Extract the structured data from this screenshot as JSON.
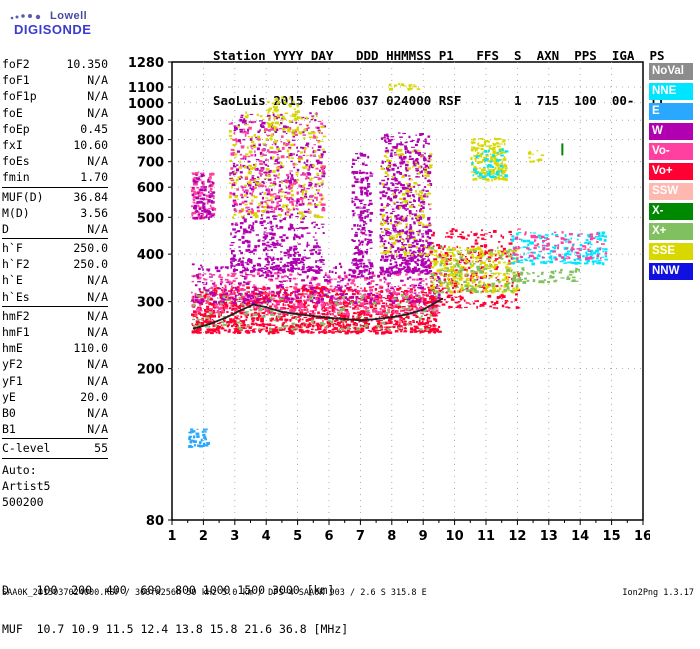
{
  "logo": {
    "lowell": "Lowell",
    "digisonde": "DIGISONDE"
  },
  "header": {
    "line1": "Station YYYY DAY   DDD HHMMSS P1   FFS  S  AXN  PPS  IGA  PS",
    "line2": "SaoLuis 2015 Feb06 037 024000 RSF       1  715  100  00-  11"
  },
  "params": {
    "group1": [
      {
        "name": "foF2",
        "value": "10.350"
      },
      {
        "name": "foF1",
        "value": "N/A"
      },
      {
        "name": "foF1p",
        "value": "N/A"
      },
      {
        "name": "foE",
        "value": "N/A"
      },
      {
        "name": "foEp",
        "value": "0.45"
      },
      {
        "name": "fxI",
        "value": "10.60"
      },
      {
        "name": "foEs",
        "value": "N/A"
      },
      {
        "name": "fmin",
        "value": "1.70"
      }
    ],
    "group2": [
      {
        "name": "MUF(D)",
        "value": "36.84"
      },
      {
        "name": "M(D)",
        "value": "3.56"
      },
      {
        "name": "D",
        "value": "N/A"
      }
    ],
    "group3": [
      {
        "name": "h`F",
        "value": "250.0"
      },
      {
        "name": "h`F2",
        "value": "250.0"
      },
      {
        "name": "h`E",
        "value": "N/A"
      },
      {
        "name": "h`Es",
        "value": "N/A"
      }
    ],
    "group4": [
      {
        "name": "hmF2",
        "value": "N/A"
      },
      {
        "name": "hmF1",
        "value": "N/A"
      },
      {
        "name": "hmE",
        "value": "110.0"
      },
      {
        "name": "yF2",
        "value": "N/A"
      },
      {
        "name": "yF1",
        "value": "N/A"
      },
      {
        "name": "yE",
        "value": "20.0"
      },
      {
        "name": "B0",
        "value": "N/A"
      },
      {
        "name": "B1",
        "value": "N/A"
      }
    ],
    "group5": [
      {
        "name": "C-level",
        "value": "55"
      }
    ],
    "auto_lines": [
      "Auto:",
      "Artist5",
      "500200"
    ]
  },
  "legend": [
    {
      "label": "NoVal",
      "color": "#8c8c8c"
    },
    {
      "label": "NNE",
      "color": "#00e5ff"
    },
    {
      "label": "E",
      "color": "#2aa8ff"
    },
    {
      "label": "W",
      "color": "#b000b0"
    },
    {
      "label": "Vo-",
      "color": "#ff40a0"
    },
    {
      "label": "Vo+",
      "color": "#ff0033"
    },
    {
      "label": "SSW",
      "color": "#ffb8b0"
    },
    {
      "label": "X-",
      "color": "#008800"
    },
    {
      "label": "X+",
      "color": "#80c060"
    },
    {
      "label": "SSE",
      "color": "#d8d800"
    },
    {
      "label": "NNW",
      "color": "#1010e0"
    }
  ],
  "chart_data": {
    "type": "scatter",
    "xlabel": "",
    "ylabel": "",
    "xlim": [
      1,
      16
    ],
    "ylim": [
      80,
      1280
    ],
    "x_ticks": [
      1,
      2,
      3,
      4,
      5,
      6,
      7,
      8,
      9,
      10,
      11,
      12,
      13,
      14,
      15,
      16
    ],
    "y_ticks": [
      80,
      200,
      300,
      400,
      500,
      600,
      700,
      800,
      900,
      1000,
      1100,
      1280
    ],
    "y_scale": "log",
    "trace": {
      "name": "",
      "color": "#202020",
      "x": [
        1.7,
        2.2,
        2.7,
        3.2,
        3.6,
        4.0,
        4.5,
        5.0,
        5.5,
        6.0,
        6.5,
        7.0,
        7.5,
        8.0,
        8.5,
        9.0,
        9.3,
        9.6
      ],
      "y": [
        255,
        262,
        272,
        285,
        295,
        290,
        282,
        278,
        275,
        272,
        270,
        268,
        270,
        273,
        278,
        286,
        295,
        305
      ]
    },
    "echo_regions": [
      {
        "x": [
          1.6,
          9.5
        ],
        "y": [
          250,
          330
        ],
        "color": "#ff0033",
        "density": 1400
      },
      {
        "x": [
          1.6,
          9.5
        ],
        "y": [
          280,
          360
        ],
        "color": "#ff40a0",
        "density": 500
      },
      {
        "x": [
          1.6,
          9.5
        ],
        "y": [
          300,
          380
        ],
        "color": "#b000b0",
        "density": 350
      },
      {
        "x": [
          1.6,
          9.5
        ],
        "y": [
          255,
          320
        ],
        "color": "#80c060",
        "density": 150
      },
      {
        "x": [
          9.2,
          12.0
        ],
        "y": [
          290,
          470
        ],
        "color": "#ff0033",
        "density": 300
      },
      {
        "x": [
          9.2,
          12.0
        ],
        "y": [
          320,
          420
        ],
        "color": "#d8d800",
        "density": 300
      },
      {
        "x": [
          9.2,
          12.0
        ],
        "y": [
          320,
          420
        ],
        "color": "#80c060",
        "density": 120
      },
      {
        "x": [
          11.8,
          14.8
        ],
        "y": [
          380,
          460
        ],
        "color": "#00e5ff",
        "density": 180
      },
      {
        "x": [
          11.8,
          14.8
        ],
        "y": [
          390,
          460
        ],
        "color": "#ff40a0",
        "density": 100
      },
      {
        "x": [
          11.8,
          14.0
        ],
        "y": [
          340,
          370
        ],
        "color": "#80c060",
        "density": 60
      },
      {
        "x": [
          1.6,
          2.3
        ],
        "y": [
          500,
          660
        ],
        "color": "#ff40a0",
        "density": 120
      },
      {
        "x": [
          1.6,
          2.3
        ],
        "y": [
          500,
          660
        ],
        "color": "#b000b0",
        "density": 80
      },
      {
        "x": [
          2.8,
          5.8
        ],
        "y": [
          360,
          950
        ],
        "color": "#b000b0",
        "density": 700
      },
      {
        "x": [
          2.8,
          5.8
        ],
        "y": [
          500,
          950
        ],
        "color": "#d8d800",
        "density": 250
      },
      {
        "x": [
          2.8,
          5.8
        ],
        "y": [
          520,
          900
        ],
        "color": "#ff40a0",
        "density": 200
      },
      {
        "x": [
          4.0,
          5.0
        ],
        "y": [
          850,
          1040
        ],
        "color": "#d8d800",
        "density": 60
      },
      {
        "x": [
          6.7,
          7.3
        ],
        "y": [
          350,
          750
        ],
        "color": "#b000b0",
        "density": 200
      },
      {
        "x": [
          7.6,
          9.2
        ],
        "y": [
          360,
          840
        ],
        "color": "#b000b0",
        "density": 600
      },
      {
        "x": [
          7.6,
          9.2
        ],
        "y": [
          400,
          760
        ],
        "color": "#d8d800",
        "density": 150
      },
      {
        "x": [
          7.9,
          8.8
        ],
        "y": [
          1090,
          1130
        ],
        "color": "#d8d800",
        "density": 20
      },
      {
        "x": [
          10.5,
          11.6
        ],
        "y": [
          630,
          810
        ],
        "color": "#d8d800",
        "density": 200
      },
      {
        "x": [
          10.5,
          11.6
        ],
        "y": [
          640,
          760
        ],
        "color": "#00e5ff",
        "density": 60
      },
      {
        "x": [
          1.5,
          2.1
        ],
        "y": [
          125,
          140
        ],
        "color": "#2aa8ff",
        "density": 40
      },
      {
        "x": [
          12.3,
          12.8
        ],
        "y": [
          700,
          770
        ],
        "color": "#d8d800",
        "density": 12
      }
    ],
    "marks": [
      {
        "label": "X- marker",
        "x": 13.4,
        "y": 745,
        "color": "#008800"
      }
    ]
  },
  "bottom": {
    "d_row": "D    100  200  400  600  800 1000 1500 3000 [km]",
    "muf_row": "MUF  10.7 10.9 11.5 12.4 13.8 15.8 21.6 36.8 [MHz]"
  },
  "footer": {
    "left": "SAA0K_2015037024000.RSF / 300fx256h 50 kHz 5.0 km / DPS-4 SAA0K 903 / 2.6 S 315.8 E",
    "right": "Ion2Png 1.3.17"
  }
}
